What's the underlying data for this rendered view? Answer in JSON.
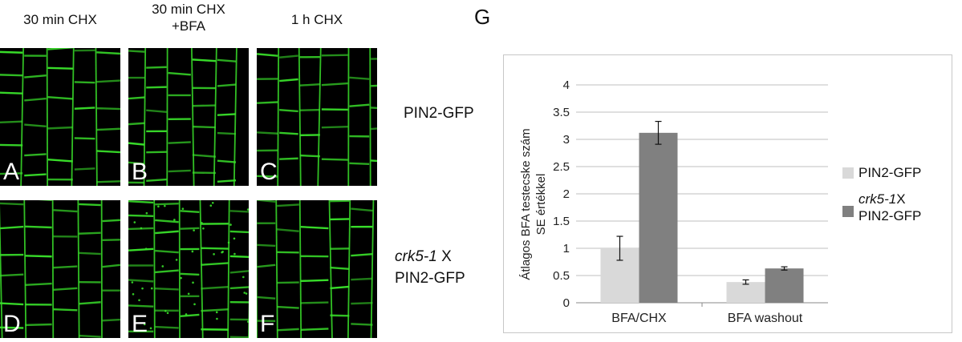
{
  "columns": [
    {
      "lines": [
        "30 min CHX"
      ]
    },
    {
      "lines": [
        "30 min CHX",
        "+BFA"
      ]
    },
    {
      "lines": [
        "1 h CHX"
      ]
    }
  ],
  "rows": [
    {
      "label_italic": "",
      "label_rest": "PIN2-GFP"
    },
    {
      "label_italic": "crk5-1",
      "label_rest": " X",
      "label_line2": "PIN2-GFP"
    }
  ],
  "panels": [
    "A",
    "B",
    "C",
    "D",
    "E",
    "F"
  ],
  "figure_letter": "G",
  "colors": {
    "cell_wall": "#39e02a",
    "background": "#000000",
    "series1": "#d9d9d9",
    "series2": "#808080",
    "grid": "#bfbfbf"
  },
  "chart_data": {
    "type": "bar",
    "ylabel_lines": [
      "Átlagos BFA testecske szám",
      "SE értékkel"
    ],
    "categories": [
      "BFA/CHX",
      "BFA washout"
    ],
    "ylim": [
      0,
      4
    ],
    "yticks": [
      "0",
      "0.5",
      "1",
      "1.5",
      "2",
      "2.5",
      "3",
      "3.5",
      "4"
    ],
    "grid": true,
    "legend_position": "right",
    "series": [
      {
        "name": "PIN2-GFP",
        "name_italic": "",
        "name_rest": "PIN2-GFP",
        "values": [
          1.0,
          0.38
        ],
        "errors": [
          0.22,
          0.04
        ],
        "color": "#d9d9d9"
      },
      {
        "name": "crk5-1X PIN2-GFP",
        "name_italic": "crk5-1",
        "name_rest": "X",
        "name_line2": "PIN2-GFP",
        "values": [
          3.12,
          0.63
        ],
        "errors": [
          0.21,
          0.03
        ],
        "color": "#808080"
      }
    ]
  }
}
